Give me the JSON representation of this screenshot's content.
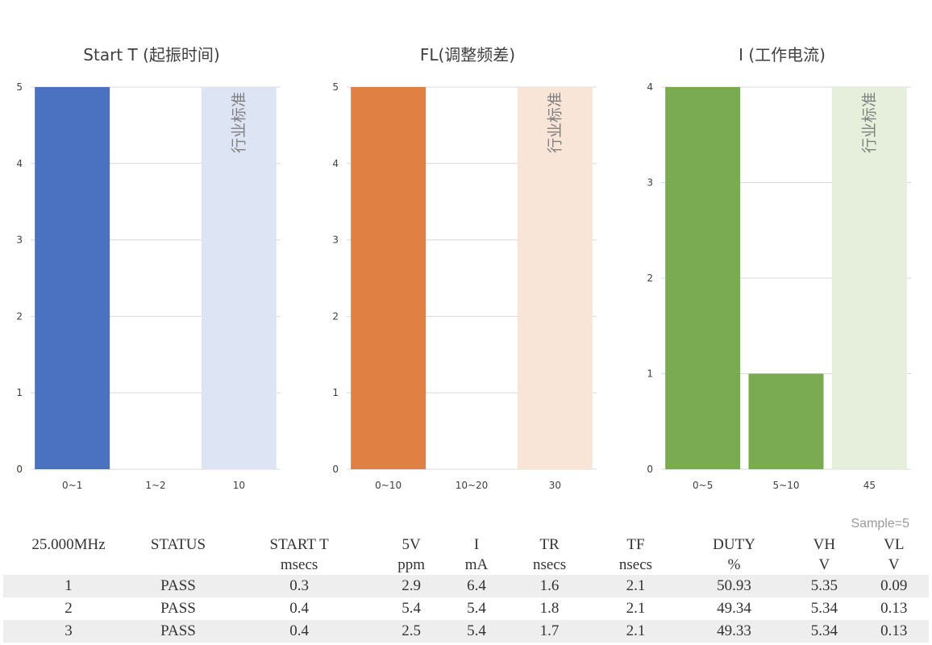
{
  "chart_data": [
    {
      "type": "bar",
      "title": "Start T (起振时间)",
      "categories": [
        "0~1",
        "1~2",
        "10"
      ],
      "values": [
        5,
        0,
        5
      ],
      "reference_label": "行业标准",
      "reference_category": "10",
      "ylim": [
        0,
        5
      ],
      "yticks": [
        "0",
        "1",
        "2",
        "3",
        "4",
        "5"
      ],
      "grid": true,
      "color": "#4a72c0",
      "reference_color": "#dde4f3"
    },
    {
      "type": "bar",
      "title": "FL(调整频差)",
      "categories": [
        "0~10",
        "10~20",
        "30"
      ],
      "values": [
        5,
        0,
        5
      ],
      "reference_label": "行业标准",
      "reference_category": "30",
      "ylim": [
        0,
        5
      ],
      "yticks": [
        "0",
        "1",
        "2",
        "3",
        "4",
        "5"
      ],
      "grid": true,
      "color": "#e08042",
      "reference_color": "#f8e5d8"
    },
    {
      "type": "bar",
      "title": "I (工作电流)",
      "categories": [
        "0~5",
        "5~10",
        "45"
      ],
      "values": [
        4,
        1,
        4
      ],
      "reference_label": "行业标准",
      "reference_category": "45",
      "ylim": [
        0,
        4
      ],
      "yticks": [
        "0",
        "1",
        "2",
        "3",
        "4"
      ],
      "grid": true,
      "color": "#7aaa52",
      "reference_color": "#e5efdc"
    }
  ],
  "sample_note": "Sample=5",
  "table": {
    "freq_label": "25.000MHz",
    "status_header": "STATUS",
    "headers": [
      {
        "name": "START T",
        "unit": "msecs"
      },
      {
        "name": "5V",
        "unit": "ppm"
      },
      {
        "name": "I",
        "unit": "mA"
      },
      {
        "name": "TR",
        "unit": "nsecs"
      },
      {
        "name": "TF",
        "unit": "nsecs"
      },
      {
        "name": "DUTY",
        "unit": "%"
      },
      {
        "name": "VH",
        "unit": "V"
      },
      {
        "name": "VL",
        "unit": "V"
      }
    ],
    "rows": [
      {
        "index": "1",
        "status": "PASS",
        "values": [
          "0.3",
          "2.9",
          "6.4",
          "1.6",
          "2.1",
          "50.93",
          "5.35",
          "0.09"
        ]
      },
      {
        "index": "2",
        "status": "PASS",
        "values": [
          "0.4",
          "5.4",
          "5.4",
          "1.8",
          "2.1",
          "49.34",
          "5.34",
          "0.13"
        ]
      },
      {
        "index": "3",
        "status": "PASS",
        "values": [
          "0.4",
          "2.5",
          "5.4",
          "1.7",
          "2.1",
          "49.33",
          "5.34",
          "0.13"
        ]
      }
    ]
  }
}
